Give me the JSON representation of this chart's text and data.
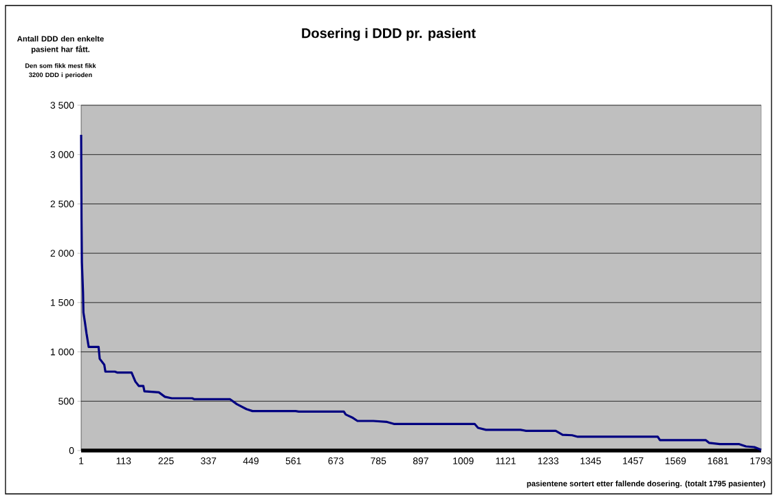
{
  "chart_data": {
    "type": "line",
    "title": "Dosering i DDD pr. pasient",
    "xlabel": "pasientene sortert etter fallende dosering. (totalt 1795 pasienter)",
    "annotations": [
      "Antall DDD den enkelte pasient har fått.",
      "Den som fikk mest fikk 3200 DDD i perioden"
    ],
    "x": [
      1,
      2,
      3,
      6,
      7,
      11,
      15,
      21,
      47,
      50,
      62,
      65,
      90,
      97,
      134,
      144,
      153,
      165,
      168,
      206,
      222,
      240,
      294,
      300,
      394,
      412,
      437,
      453,
      567,
      575,
      694,
      699,
      716,
      730,
      772,
      808,
      826,
      1039,
      1048,
      1069,
      1160,
      1175,
      1253,
      1271,
      1296,
      1311,
      1522,
      1528,
      1649,
      1658,
      1686,
      1737,
      1755,
      1777,
      1795
    ],
    "series": [
      {
        "color": "#000080",
        "values": [
          3200,
          2340,
          1910,
          1600,
          1400,
          1300,
          1190,
          1050,
          1050,
          930,
          870,
          800,
          800,
          790,
          790,
          700,
          655,
          655,
          600,
          590,
          545,
          530,
          530,
          520,
          520,
          470,
          420,
          400,
          400,
          395,
          395,
          365,
          335,
          300,
          300,
          290,
          270,
          270,
          230,
          210,
          210,
          200,
          200,
          160,
          155,
          140,
          140,
          105,
          105,
          77,
          65,
          65,
          42,
          35,
          7
        ]
      }
    ],
    "xlim": [
      1,
      1795
    ],
    "xticks": [
      1,
      113,
      225,
      337,
      449,
      561,
      673,
      785,
      897,
      1009,
      1121,
      1233,
      1345,
      1457,
      1569,
      1681,
      1793
    ],
    "ylim": [
      0,
      3500
    ],
    "yticks": [
      0,
      500,
      {
        "value": 1000,
        "label": "1 000"
      },
      {
        "value": 1500,
        "label": "1 500"
      },
      {
        "value": 2000,
        "label": "2 000"
      },
      {
        "value": 2500,
        "label": "2 500"
      },
      {
        "value": 3000,
        "label": "3 000"
      },
      {
        "value": 3500,
        "label": "3 500"
      }
    ],
    "grid": "y"
  }
}
